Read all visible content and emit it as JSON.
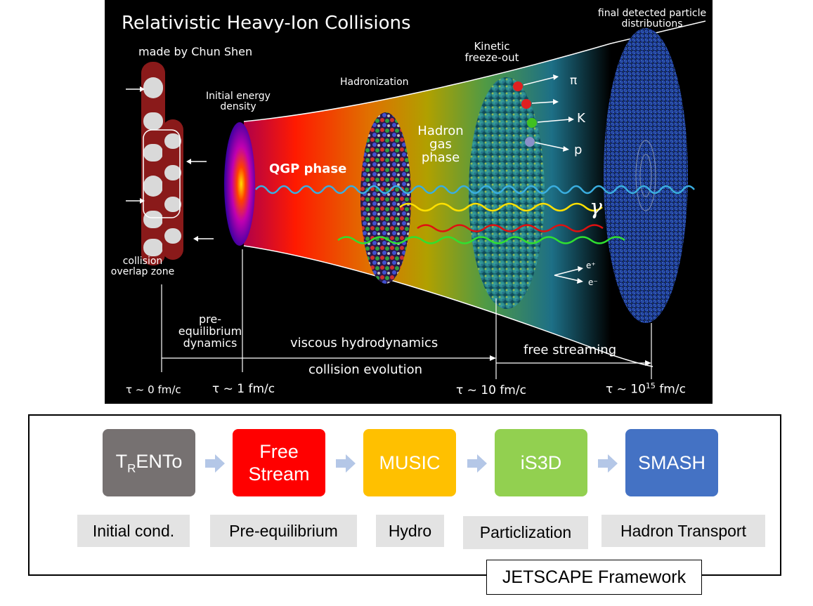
{
  "diagram": {
    "title": "Relativistic Heavy-Ion Collisions",
    "credit": "made by Chun Shen",
    "labels": {
      "collision_zone": "collision overlap zone",
      "initial_density": "Initial energy density",
      "qgp": "QGP phase",
      "hadronization": "Hadronization",
      "hadron_gas": "Hadron gas phase",
      "kinetic": "Kinetic freeze-out",
      "final": "final detected particle distributions",
      "pi": "π",
      "k": "K",
      "p": "p",
      "gamma": "γ",
      "e_plus": "e⁺",
      "e_minus": "e⁻"
    },
    "timeline": {
      "pre_eq": "pre-equilibrium dynamics",
      "viscous": "viscous hydrodynamics",
      "free_streaming": "free streaming",
      "evolution": "collision evolution",
      "t0": "τ ~ 0 fm/c",
      "t1": "τ ~ 1 fm/c",
      "t10": "τ ~ 10 fm/c",
      "t15_prefix": "τ ~ 10",
      "t15_exp": "15",
      "t15_suffix": " fm/c"
    }
  },
  "framework": {
    "name": "JETSCAPE Framework",
    "stages": [
      {
        "name_main": "T",
        "name_sub": "R",
        "name_rest": "ENTo",
        "color": "#767171",
        "caption": "Initial cond."
      },
      {
        "name": "Free Stream",
        "color": "#ff0000",
        "caption": "Pre-equilibrium"
      },
      {
        "name": "MUSIC",
        "color": "#ffc000",
        "caption": "Hydro"
      },
      {
        "name": "iS3D",
        "color": "#92d050",
        "caption": "Particlization"
      },
      {
        "name": "SMASH",
        "color": "#4472c4",
        "caption": "Hadron Transport"
      }
    ],
    "arrow_color": "#b4c7e7"
  }
}
